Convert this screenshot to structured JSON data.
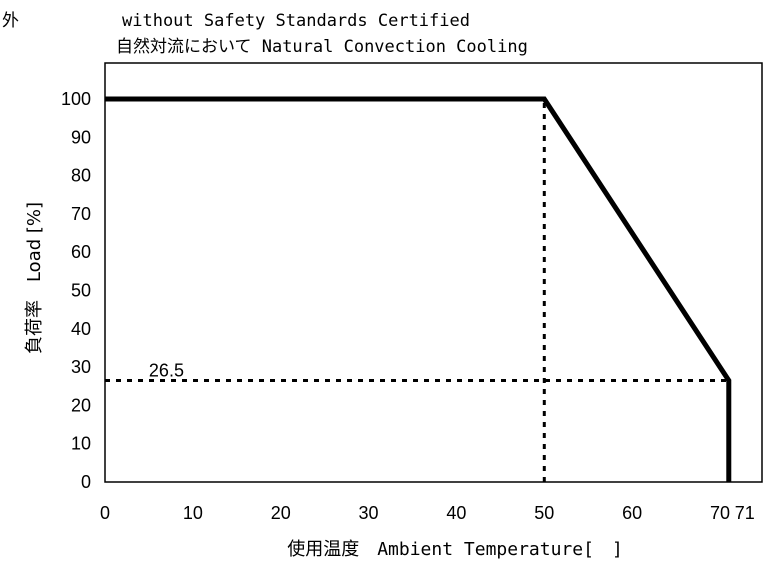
{
  "chart_data": {
    "type": "line",
    "title_line1": "外",
    "title_line2": "without Safety Standards Certified",
    "title_line3": "自然対流において Natural Convection Cooling",
    "xlabel": "使用温度　Ambient Temperature[　]",
    "ylabel": "負荷率　Load [%]",
    "xlim": [
      0,
      71
    ],
    "ylim": [
      0,
      100
    ],
    "x_ticks": [
      "0",
      "10",
      "20",
      "30",
      "40",
      "50",
      "60",
      "70",
      "71"
    ],
    "x_tick_values": [
      0,
      10,
      20,
      30,
      40,
      50,
      60,
      70,
      71
    ],
    "y_ticks": [
      "0",
      "10",
      "20",
      "30",
      "40",
      "50",
      "60",
      "70",
      "80",
      "90",
      "100"
    ],
    "y_tick_values": [
      0,
      10,
      20,
      30,
      40,
      50,
      60,
      70,
      80,
      90,
      100
    ],
    "series": [
      {
        "x": [
          0,
          50,
          71,
          71
        ],
        "y": [
          100,
          100,
          26.5,
          0
        ]
      }
    ],
    "reference_lines": [
      {
        "orientation": "vertical",
        "x": 50,
        "y_range": [
          0,
          100
        ]
      },
      {
        "orientation": "horizontal",
        "y": 26.5,
        "x_range": [
          0,
          71
        ]
      }
    ],
    "annotations": [
      {
        "text": "26.5",
        "x": 5,
        "y": 26.5
      }
    ],
    "grid": false,
    "legend": "none"
  }
}
